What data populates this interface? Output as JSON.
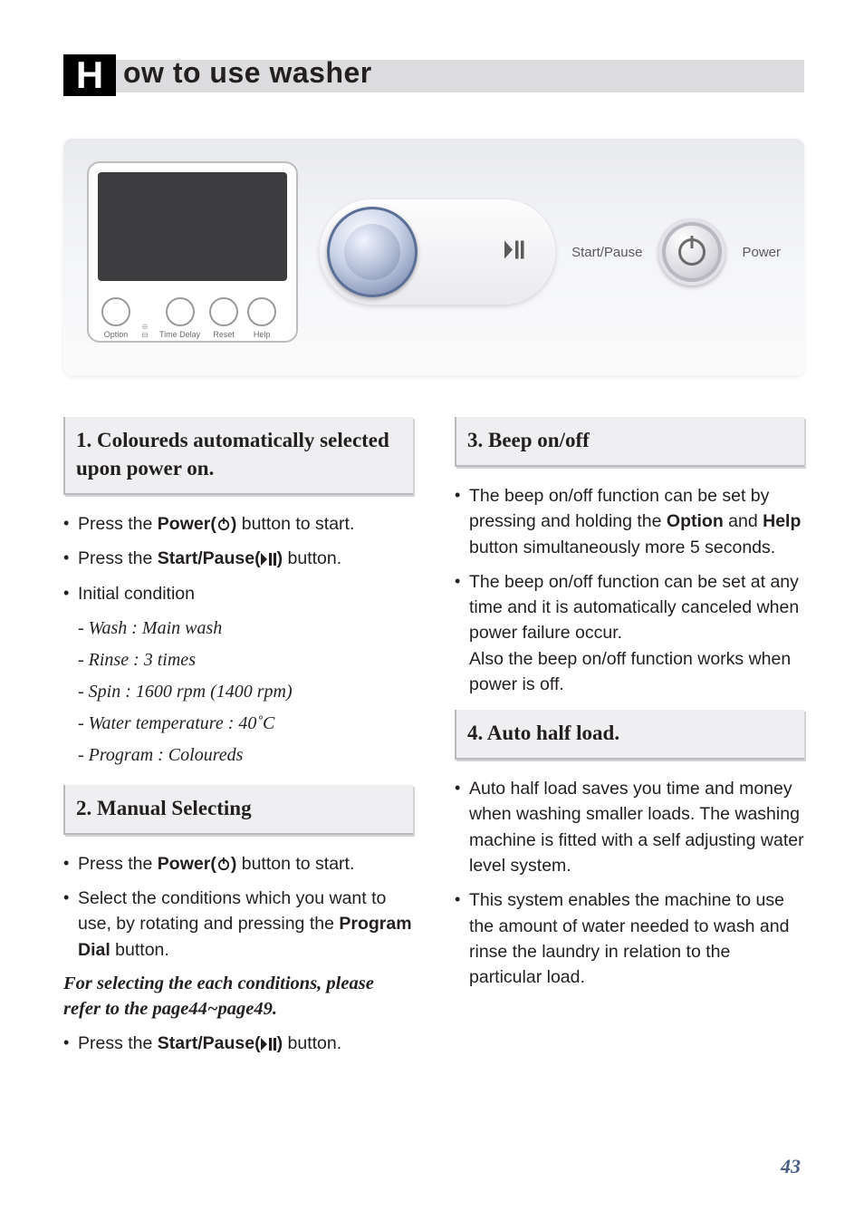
{
  "title": {
    "drop_cap": "H",
    "rest": "ow to use washer"
  },
  "panel": {
    "lcd_buttons": [
      {
        "label": "Option"
      },
      {
        "label": "Time Delay"
      },
      {
        "label": "Reset"
      },
      {
        "label": "Help"
      }
    ],
    "start_pause_label": "Start/Pause",
    "power_label": "Power"
  },
  "left": {
    "h1": {
      "num": "1.",
      "text": "Coloureds automatically selected upon power on."
    },
    "h1_items": [
      {
        "pre": "Press the ",
        "bold": "Power(",
        "icon": "power",
        "post": ")",
        "tail": " button to start."
      },
      {
        "pre": "Press the ",
        "bold": "Start/Pause(",
        "icon": "playpause",
        "post": ")",
        "tail": " button."
      },
      {
        "pre": "Initial condition",
        "bold": "",
        "icon": "",
        "post": "",
        "tail": ""
      }
    ],
    "initial": [
      "- Wash :  Main wash",
      "- Rinse : 3 times",
      "- Spin : 1600 rpm (1400 rpm)",
      "- Water temperature : 40˚C",
      "- Program : Coloureds"
    ],
    "h2": {
      "num": "2.",
      "text": "Manual Selecting"
    },
    "h2_items": [
      {
        "pre": "Press the ",
        "bold": "Power(",
        "icon": "power",
        "post": ")",
        "tail": " button to start."
      },
      {
        "pre": "Select the conditions which you want to use, by rotating and pressing the ",
        "bold": "Program Dial",
        "icon": "",
        "post": "",
        "tail": " button."
      }
    ],
    "h2_note": "For selecting the each conditions, please refer to the page44~page49.",
    "h2_tail": {
      "pre": "Press the ",
      "bold": "Start/Pause(",
      "icon": "playpause",
      "post": ")",
      "tail": " button."
    }
  },
  "right": {
    "h3": {
      "num": "3.",
      "text": "Beep on/off"
    },
    "h3_items": [
      "The beep on/off function can be set by pressing and holding the <b>Option</b> and <b>Help</b> button simultaneously more 5 seconds.",
      "The beep on/off function can be set at any time and it is automatically canceled when power failure occur.<br>Also the beep on/off function works when power is off."
    ],
    "h4": {
      "num": "4.",
      "text": "Auto half load."
    },
    "h4_items": [
      "Auto half load saves you time and money when washing smaller loads. The washing machine is fitted with a self adjusting water level system.",
      "This system enables the machine to use the amount of water needed to wash and rinse the laundry in relation to the particular load."
    ]
  },
  "page_number": "43"
}
